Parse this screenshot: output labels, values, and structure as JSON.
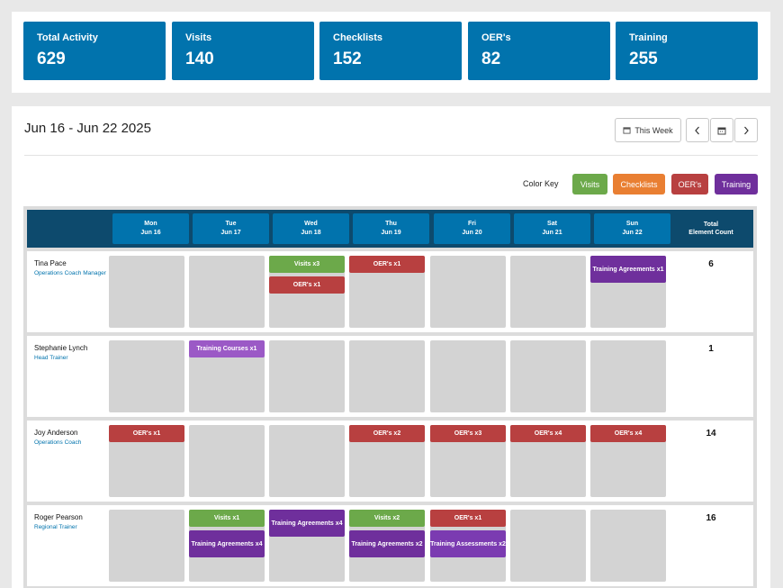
{
  "stats": [
    {
      "label": "Total Activity",
      "value": "629"
    },
    {
      "label": "Visits",
      "value": "140"
    },
    {
      "label": "Checklists",
      "value": "152"
    },
    {
      "label": "OER's",
      "value": "82"
    },
    {
      "label": "Training",
      "value": "255"
    }
  ],
  "header": {
    "range": "Jun 16 - Jun 22 2025",
    "this_week_label": "This Week",
    "icons": {
      "calendar": "calendar-icon",
      "prev": "chevron-left-icon",
      "next": "chevron-right-icon"
    }
  },
  "color_key": {
    "label": "Color Key",
    "items": [
      {
        "label": "Visits",
        "color": "#6ca94a"
      },
      {
        "label": "Checklists",
        "color": "#e97f32"
      },
      {
        "label": "OER's",
        "color": "#b84040"
      },
      {
        "label": "Training",
        "color": "#6f2f9c"
      }
    ]
  },
  "grid": {
    "days": [
      {
        "day": "Mon",
        "date": "Jun 16"
      },
      {
        "day": "Tue",
        "date": "Jun 17"
      },
      {
        "day": "Wed",
        "date": "Jun 18"
      },
      {
        "day": "Thu",
        "date": "Jun 19"
      },
      {
        "day": "Fri",
        "date": "Jun 20"
      },
      {
        "day": "Sat",
        "date": "Jun 21"
      },
      {
        "day": "Sun",
        "date": "Jun 22"
      }
    ],
    "total_header_line1": "Total",
    "total_header_line2": "Element Count"
  },
  "rows": [
    {
      "name": "Tina Pace",
      "role": "Operations Coach Manager",
      "total": "6",
      "cells": [
        [],
        [],
        [
          {
            "type": "visit",
            "text": "Visits x3"
          },
          {
            "type": "oer",
            "text": "OER's x1"
          }
        ],
        [
          {
            "type": "oer",
            "text": "OER's x1"
          }
        ],
        [],
        [],
        [
          {
            "type": "training",
            "text": "Training Agreements x1"
          }
        ]
      ]
    },
    {
      "name": "Stephanie Lynch",
      "role": "Head Trainer",
      "total": "1",
      "cells": [
        [],
        [
          {
            "type": "course",
            "text": "Training Courses x1"
          }
        ],
        [],
        [],
        [],
        [],
        []
      ]
    },
    {
      "name": "Joy Anderson",
      "role": "Operations Coach",
      "total": "14",
      "cells": [
        [
          {
            "type": "oer",
            "text": "OER's x1"
          }
        ],
        [],
        [],
        [
          {
            "type": "oer",
            "text": "OER's x2"
          }
        ],
        [
          {
            "type": "oer",
            "text": "OER's x3"
          }
        ],
        [
          {
            "type": "oer",
            "text": "OER's x4"
          }
        ],
        [
          {
            "type": "oer",
            "text": "OER's x4"
          }
        ]
      ]
    },
    {
      "name": "Roger Pearson",
      "role": "Regional Trainer",
      "total": "16",
      "cells": [
        [],
        [
          {
            "type": "visit",
            "text": "Visits x1"
          },
          {
            "type": "training",
            "text": "Training Agreements x4"
          }
        ],
        [
          {
            "type": "training",
            "text": "Training Agreements x4"
          }
        ],
        [
          {
            "type": "visit",
            "text": "Visits x2"
          },
          {
            "type": "training",
            "text": "Training Agreements x2"
          }
        ],
        [
          {
            "type": "oer",
            "text": "OER's x1"
          },
          {
            "type": "assess",
            "text": "Training Assessments x2"
          }
        ],
        [],
        []
      ]
    }
  ]
}
